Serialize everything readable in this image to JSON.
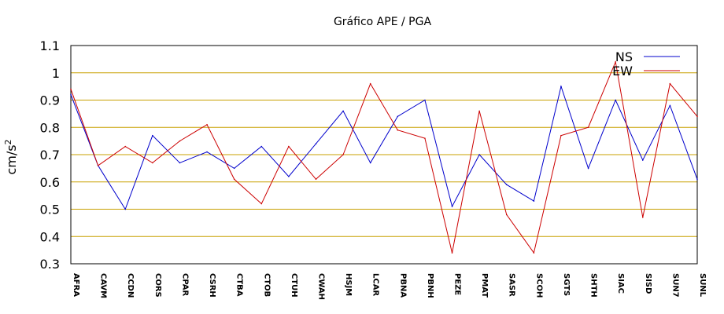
{
  "chart_data": {
    "type": "line",
    "title": "Gráfico  APE / PGA",
    "ylabel": "cm/s",
    "ylabel_superscript": "2",
    "xlabel": "",
    "ylim": [
      0.3,
      1.1
    ],
    "yticks": [
      "0.3",
      "0.4",
      "0.5",
      "0.6",
      "0.7",
      "0.8",
      "0.9",
      "1",
      "1.1"
    ],
    "grid": true,
    "legend_position": "top-right",
    "categories": [
      "AFRA",
      "CAVM",
      "CCDN",
      "CORS",
      "CPAR",
      "CSRH",
      "CTBA",
      "CTOB",
      "CTUH",
      "CWAH",
      "HSJM",
      "LCAR",
      "PBNA",
      "PBNH",
      "PEZE",
      "PMAT",
      "SASR",
      "SCOH",
      "SGTS",
      "SHTH",
      "SIAC",
      "SISD",
      "SUN7",
      "SUNL"
    ],
    "series": [
      {
        "name": "NS",
        "color": "#0000cc",
        "values": [
          0.92,
          0.66,
          0.5,
          0.77,
          0.67,
          0.71,
          0.65,
          0.73,
          0.62,
          0.74,
          0.86,
          0.67,
          0.84,
          0.9,
          0.51,
          0.7,
          0.59,
          0.53,
          0.95,
          0.65,
          0.9,
          0.68,
          0.88,
          0.61
        ]
      },
      {
        "name": "EW",
        "color": "#cc0000",
        "values": [
          0.94,
          0.66,
          0.73,
          0.67,
          0.75,
          0.81,
          0.61,
          0.52,
          0.73,
          0.61,
          0.7,
          0.96,
          0.79,
          0.76,
          0.34,
          0.86,
          0.48,
          0.34,
          0.77,
          0.8,
          1.04,
          0.47,
          0.96,
          0.84
        ]
      }
    ],
    "gridline_color": "#c8a000"
  }
}
